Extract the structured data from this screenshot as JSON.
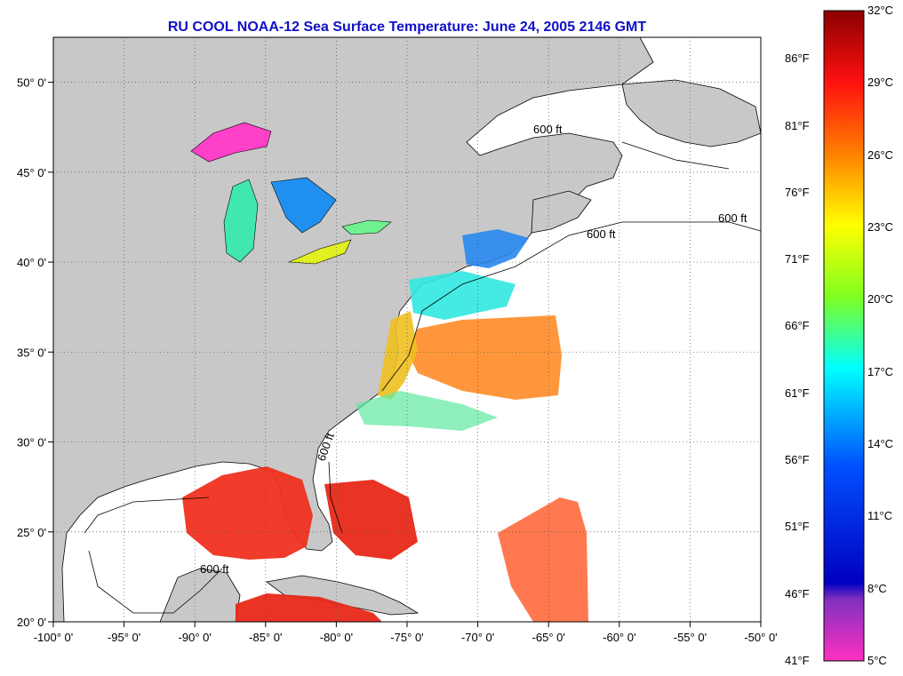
{
  "title": "RU COOL  NOAA-12  Sea Surface Temperature:  June 24, 2005 2146 GMT",
  "map": {
    "lon_range": [
      -100,
      -50
    ],
    "lat_range": [
      20,
      52.5
    ],
    "lon_ticks": [
      "-100° 0'",
      "-95° 0'",
      "-90° 0'",
      "-85° 0'",
      "-80° 0'",
      "-75° 0'",
      "-70° 0'",
      "-65° 0'",
      "-60° 0'",
      "-55° 0'",
      "-50° 0'"
    ],
    "lat_ticks": [
      "20° 0'",
      "25° 0'",
      "30° 0'",
      "35° 0'",
      "40° 0'",
      "45° 0'",
      "50° 0'"
    ],
    "contour_label": "600 ft",
    "grid": "dotted",
    "colors": {
      "land": "#c8c8c8",
      "ocean_missing": "#ffffff",
      "coast": "#000000",
      "title": "#1010c8"
    }
  },
  "colorbar": {
    "celsius": [
      "32°C",
      "29°C",
      "26°C",
      "23°C",
      "20°C",
      "17°C",
      "14°C",
      "11°C",
      "8°C",
      "5°C"
    ],
    "fahrenheit": [
      "86°F",
      "81°F",
      "76°F",
      "71°F",
      "66°F",
      "61°F",
      "56°F",
      "51°F",
      "46°F",
      "41°F"
    ],
    "range_c": [
      5,
      32
    ],
    "gradient": [
      "#8b0000",
      "#ff1010",
      "#ff8000",
      "#ffff00",
      "#80ff20",
      "#00ffff",
      "#0050ff",
      "#0000c0",
      "#8030c0",
      "#ff30c0"
    ]
  }
}
